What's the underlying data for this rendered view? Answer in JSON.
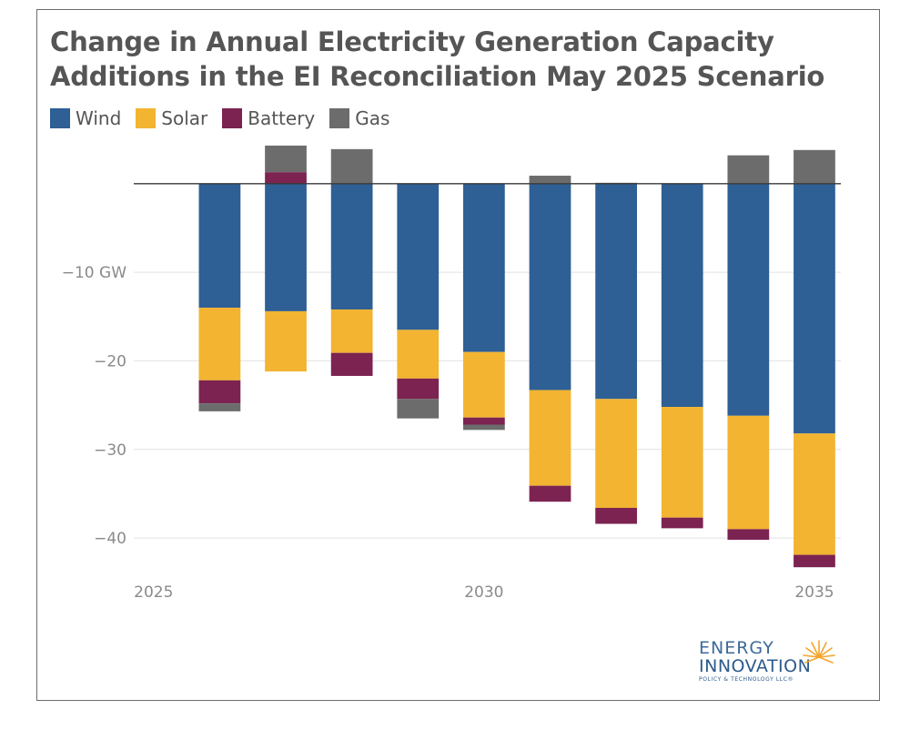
{
  "chart_data": {
    "type": "bar",
    "stacked": true,
    "title": "Change in Annual Electricity Generation Capacity Additions in the EI Reconciliation May 2025 Scenario",
    "x": [
      2026,
      2027,
      2028,
      2029,
      2030,
      2031,
      2032,
      2033,
      2034,
      2035
    ],
    "x_tick_labels": [
      "2025",
      "2030",
      "2035"
    ],
    "x_tick_values": [
      2025,
      2030,
      2035
    ],
    "y_tick_values": [
      -10,
      -20,
      -30,
      -40
    ],
    "y_tick_labels": [
      "−10 GW",
      "−20",
      "−30",
      "−40"
    ],
    "ylim": [
      -44,
      4.5
    ],
    "xlim": [
      2024.7,
      2035.4
    ],
    "legend_position": "top-left",
    "series": [
      {
        "name": "Wind",
        "color": "#2e5f95",
        "values": [
          -14.0,
          -14.4,
          -14.2,
          -16.5,
          -19.0,
          -23.3,
          -24.3,
          -25.2,
          -26.2,
          -28.2
        ]
      },
      {
        "name": "Solar",
        "color": "#f2b431",
        "values": [
          -8.2,
          -6.8,
          -4.9,
          -5.5,
          -7.4,
          -10.8,
          -12.3,
          -12.5,
          -12.8,
          -13.7
        ]
      },
      {
        "name": "Battery",
        "color": "#7c2352",
        "values": [
          -2.6,
          1.3,
          -2.6,
          -2.3,
          -0.8,
          -1.8,
          -1.8,
          -1.2,
          -1.2,
          -1.4
        ]
      },
      {
        "name": "Gas",
        "color": "#6c6c6c",
        "values": [
          -0.9,
          3.0,
          3.9,
          -2.2,
          -0.6,
          0.9,
          0.1,
          0.0,
          3.2,
          3.8
        ]
      }
    ]
  },
  "logo": {
    "line1": "ENERGY",
    "line2": "INNOVATION",
    "line3": "POLICY & TECHNOLOGY LLC®"
  }
}
